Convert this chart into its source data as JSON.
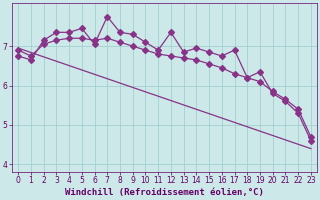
{
  "xlabel": "Windchill (Refroidissement éolien,°C)",
  "x_values": [
    0,
    1,
    2,
    3,
    4,
    5,
    6,
    7,
    8,
    9,
    10,
    11,
    12,
    13,
    14,
    15,
    16,
    17,
    18,
    19,
    20,
    21,
    22,
    23
  ],
  "jagged_y": [
    6.75,
    6.65,
    7.15,
    7.35,
    7.35,
    7.45,
    7.05,
    7.75,
    7.35,
    7.3,
    7.1,
    6.9,
    7.35,
    6.85,
    6.95,
    6.85,
    6.75,
    6.9,
    6.2,
    6.35,
    5.8,
    5.6,
    5.3,
    4.6
  ],
  "smooth_y": [
    6.9,
    6.75,
    7.05,
    7.15,
    7.2,
    7.2,
    7.15,
    7.2,
    7.1,
    7.0,
    6.9,
    6.8,
    6.75,
    6.7,
    6.65,
    6.55,
    6.45,
    6.3,
    6.2,
    6.1,
    5.85,
    5.65,
    5.4,
    4.7
  ],
  "trend_x": [
    0,
    23
  ],
  "trend_y": [
    6.95,
    4.4
  ],
  "line_color": "#883388",
  "bg_color": "#cce8e8",
  "grid_color": "#99cccc",
  "text_color": "#660066",
  "ylim": [
    3.8,
    8.1
  ],
  "xlim": [
    -0.5,
    23.5
  ],
  "yticks": [
    4,
    5,
    6,
    7
  ],
  "xticks": [
    0,
    1,
    2,
    3,
    4,
    5,
    6,
    7,
    8,
    9,
    10,
    11,
    12,
    13,
    14,
    15,
    16,
    17,
    18,
    19,
    20,
    21,
    22,
    23
  ],
  "marker": "D",
  "markersize": 3,
  "linewidth": 0.9,
  "tick_fontsize": 5.5,
  "xlabel_fontsize": 6.5
}
